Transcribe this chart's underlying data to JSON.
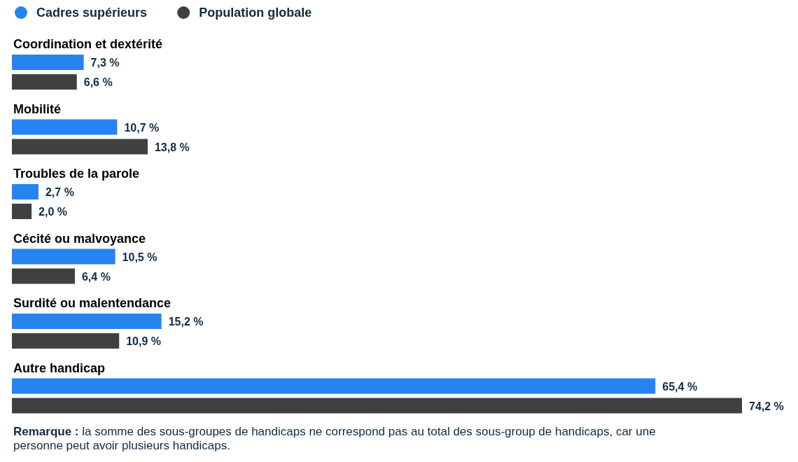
{
  "chart_data": {
    "type": "bar",
    "orientation": "horizontal",
    "legend": "top left",
    "categories": [
      "Coordination et dextérité",
      "Mobilité",
      "Troubles de la parole",
      "Cécité ou malvoyance",
      "Surdité ou malentendance",
      "Autre handicap"
    ],
    "series": [
      {
        "name": "Cadres supérieurs",
        "color": "#2684f0",
        "values": [
          7.3,
          10.7,
          2.7,
          10.5,
          15.2,
          65.4
        ],
        "value_labels": [
          "7,3 %",
          "10,7 %",
          "2,7 %",
          "10,5 %",
          "15,2 %",
          "65,4 %"
        ]
      },
      {
        "name": "Population globale",
        "color": "#404040",
        "values": [
          6.6,
          13.8,
          2.0,
          6.4,
          10.9,
          74.2
        ],
        "value_labels": [
          "6,6 %",
          "13,8 %",
          "2,0 %",
          "6,4 %",
          "10,9 %",
          "74,2 %"
        ]
      }
    ],
    "annotations": [
      "Remarque : la somme des sous-groupes de handicaps ne correspond pas au total des sous-group de handicaps, car une personne peut avoir plusieurs handicaps."
    ]
  }
}
